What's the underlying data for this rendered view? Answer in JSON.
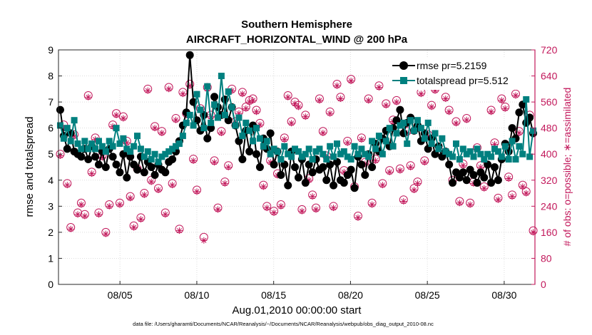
{
  "chart_data": {
    "type": "line",
    "title_line1": "Southern Hemisphere",
    "title_line2": "AIRCRAFT_HORIZONTAL_WIND @ 200 hPa",
    "xlabel": "Aug.01,2010 00:00:00 start",
    "ylabel": "rmse and totalspread",
    "y2label": "# of obs: o=possible; ∗=assimilated",
    "footnote": "data file: /Users/gharamti/Documents/NCAR/Reanalysis/~/Documents/NCAR/Reanalysis/webpub/obs_diag_output_2010-08.nc",
    "x_ticks": [
      {
        "day": 5,
        "label": "08/05"
      },
      {
        "day": 10,
        "label": "08/10"
      },
      {
        "day": 15,
        "label": "08/15"
      },
      {
        "day": 20,
        "label": "08/20"
      },
      {
        "day": 25,
        "label": "08/25"
      },
      {
        "day": 30,
        "label": "08/30"
      }
    ],
    "xlim": [
      1,
      32
    ],
    "ylim": [
      0,
      9
    ],
    "y_ticks": [
      "0",
      "1",
      "2",
      "3",
      "4",
      "5",
      "6",
      "7",
      "8",
      "9"
    ],
    "y2lim": [
      0,
      720
    ],
    "y2_ticks": [
      "0",
      "80",
      "160",
      "240",
      "320",
      "400",
      "480",
      "560",
      "640",
      "720"
    ],
    "grid": true,
    "legend_position": "top-right",
    "colors": {
      "rmse": "#000000",
      "spread": "#00807f",
      "obs": "#c2185b"
    },
    "series": [
      {
        "name": "rmse pr=5.2159",
        "axis": "left",
        "values": [
          6.7,
          5.7,
          5.2,
          5.8,
          5.1,
          5.0,
          4.9,
          5.2,
          4.8,
          5.3,
          4.9,
          4.6,
          5.1,
          4.5,
          5.2,
          4.9,
          4.6,
          4.3,
          5.0,
          4.1,
          4.9,
          4.6,
          4.4,
          4.9,
          4.3,
          4.7,
          4.5,
          4.2,
          4.6,
          4.4,
          4.3,
          4.7,
          4.8,
          5.1,
          5.5,
          6.1,
          6.6,
          8.8,
          7.0,
          6.3,
          5.9,
          6.5,
          5.6,
          6.0,
          7.2,
          6.8,
          6.5,
          7.1,
          6.3,
          6.8,
          6.1,
          5.5,
          4.8,
          5.9,
          5.1,
          6.1,
          5.0,
          4.5,
          5.6,
          5.2,
          5.8,
          4.6,
          5.1,
          4.2,
          4.6,
          3.8,
          5.1,
          4.5,
          4.1,
          4.8,
          3.9,
          4.6,
          4.3,
          4.8,
          4.4,
          4.5,
          4.0,
          4.6,
          3.8,
          4.7,
          4.0,
          3.9,
          4.2,
          4.4,
          3.7,
          4.9,
          4.6,
          4.2,
          5.0,
          4.5,
          5.4,
          5.1,
          5.6,
          5.9,
          5.3,
          6.0,
          6.3,
          6.7,
          5.8,
          6.2,
          6.4,
          5.9,
          6.1,
          5.5,
          5.8,
          5.2,
          5.6,
          5.0,
          5.3,
          4.9,
          5.1,
          4.6,
          3.9,
          4.3,
          4.1,
          4.3,
          4.0,
          4.4,
          4.2,
          3.9,
          4.3,
          4.1,
          4.6,
          3.9,
          4.5,
          4.0,
          4.8,
          5.4,
          5.1,
          6.0,
          5.6,
          6.6,
          6.9,
          6.2,
          6.4,
          5.8
        ]
      },
      {
        "name": "totalspread pr=5.512",
        "axis": "left",
        "values": [
          6.1,
          5.6,
          6.0,
          5.5,
          6.3,
          5.4,
          5.2,
          5.5,
          5.2,
          5.4,
          5.2,
          5.5,
          5.3,
          5.1,
          5.5,
          5.3,
          6.0,
          5.4,
          5.6,
          5.2,
          5.1,
          5.3,
          5.7,
          5.2,
          4.9,
          5.1,
          4.8,
          5.0,
          4.7,
          4.9,
          5.0,
          5.1,
          5.2,
          5.3,
          5.4,
          5.7,
          6.2,
          6.5,
          6.1,
          7.3,
          6.7,
          6.0,
          7.6,
          6.2,
          6.9,
          6.4,
          8.0,
          6.5,
          7.4,
          6.8,
          6.1,
          6.4,
          5.7,
          6.2,
          5.9,
          5.5,
          6.0,
          5.6,
          5.3,
          5.5,
          5.0,
          5.2,
          5.1,
          4.8,
          5.3,
          5.0,
          4.9,
          5.2,
          5.1,
          4.9,
          5.0,
          5.2,
          4.8,
          5.1,
          5.2,
          5.0,
          4.8,
          5.3,
          4.9,
          5.4,
          5.0,
          5.1,
          4.9,
          4.8,
          5.3,
          5.0,
          5.2,
          5.0,
          4.9,
          5.5,
          5.2,
          5.7,
          5.0,
          5.5,
          6.0,
          5.3,
          5.8,
          6.1,
          6.2,
          5.4,
          6.3,
          5.9,
          6.3,
          6.0,
          5.6,
          6.2,
          5.4,
          5.8,
          5.2,
          5.6,
          5.1,
          5.0,
          4.9,
          5.4,
          4.8,
          5.2,
          5.0,
          5.1,
          4.9,
          5.2,
          5.0,
          4.8,
          5.0,
          4.9,
          5.2,
          5.1,
          4.9,
          5.3,
          4.8,
          5.5,
          4.8,
          5.3,
          5.0,
          7.1,
          4.9,
          5.9
        ]
      },
      {
        "name": "obs possible",
        "axis": "right",
        "marker": "circle",
        "values": [
          400,
          490,
          310,
          175,
          460,
          220,
          250,
          215,
          580,
          345,
          450,
          220,
          395,
          160,
          245,
          490,
          525,
          250,
          515,
          440,
          270,
          180,
          355,
          205,
          280,
          600,
          320,
          485,
          295,
          470,
          220,
          605,
          310,
          510,
          170,
          590,
          525,
          615,
          385,
          290,
          540,
          145,
          605,
          520,
          380,
          235,
          470,
          315,
          365,
          600,
          500,
          530,
          590,
          545,
          565,
          570,
          535,
          495,
          305,
          240,
          380,
          225,
          340,
          245,
          450,
          580,
          500,
          560,
          550,
          230,
          520,
          325,
          275,
          235,
          570,
          470,
          395,
          530,
          240,
          615,
          575,
          350,
          440,
          630,
          300,
          210,
          450,
          375,
          570,
          250,
          385,
          610,
          310,
          555,
          350,
          505,
          565,
          355,
          260,
          470,
          365,
          295,
          315,
          590,
          380,
          460,
          550,
          600,
          640,
          405,
          575,
          535,
          320,
          500,
          255,
          370,
          510,
          250,
          315,
          420,
          365,
          300,
          640,
          535,
          435,
          265,
          570,
          545,
          330,
          275,
          585,
          470,
          305,
          285,
          520,
          165
        ]
      },
      {
        "name": "obs assimilated",
        "axis": "right",
        "marker": "asterisk",
        "values": [
          395,
          480,
          305,
          170,
          455,
          215,
          245,
          210,
          575,
          340,
          445,
          215,
          390,
          155,
          240,
          485,
          520,
          245,
          510,
          435,
          265,
          175,
          350,
          200,
          275,
          595,
          315,
          480,
          290,
          465,
          215,
          600,
          305,
          505,
          165,
          585,
          520,
          610,
          380,
          285,
          535,
          135,
          600,
          515,
          375,
          230,
          465,
          310,
          360,
          595,
          495,
          525,
          585,
          540,
          560,
          565,
          530,
          490,
          300,
          235,
          375,
          220,
          335,
          240,
          445,
          575,
          495,
          555,
          545,
          225,
          515,
          320,
          270,
          230,
          565,
          465,
          390,
          525,
          235,
          610,
          570,
          345,
          435,
          625,
          295,
          205,
          445,
          370,
          565,
          245,
          380,
          605,
          305,
          550,
          345,
          500,
          560,
          350,
          255,
          465,
          360,
          290,
          310,
          585,
          375,
          455,
          545,
          595,
          635,
          400,
          570,
          530,
          315,
          495,
          250,
          365,
          505,
          245,
          310,
          415,
          360,
          295,
          635,
          530,
          430,
          260,
          565,
          540,
          325,
          270,
          580,
          465,
          300,
          280,
          515,
          160
        ]
      }
    ]
  }
}
